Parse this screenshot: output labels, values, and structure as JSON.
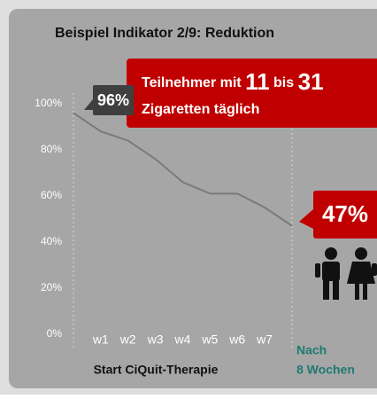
{
  "chart_data": {
    "type": "line",
    "title": "Beispiel Indikator 2/9: Reduktion",
    "categories": [
      null,
      "w1",
      "w2",
      "w3",
      "w4",
      "w5",
      "w6",
      "w7",
      null
    ],
    "series": [
      {
        "name": null,
        "color": "#7a7a7a",
        "values": [
          96,
          88,
          84,
          76,
          66,
          61,
          61,
          55,
          47
        ]
      }
    ],
    "value_labels": [
      "96%",
      null,
      null,
      null,
      null,
      null,
      null,
      null,
      "47%"
    ],
    "ylim": [
      0,
      100
    ],
    "yticks": [
      {
        "value": 0,
        "label": "0%"
      },
      {
        "value": 20,
        "label": "20%"
      },
      {
        "value": 40,
        "label": "40%"
      },
      {
        "value": 60,
        "label": "60%"
      },
      {
        "value": 80,
        "label": "80%"
      },
      {
        "value": 100,
        "label": "100%"
      }
    ],
    "grid": false,
    "callout": {
      "parts": [
        "Teilnehmer mit",
        "11",
        "bis",
        "31"
      ],
      "line2": "Zigaretten täglich"
    },
    "start_label": "Start CiQuit-Therapie",
    "end_label": [
      "Nach",
      "8 Wochen"
    ]
  }
}
